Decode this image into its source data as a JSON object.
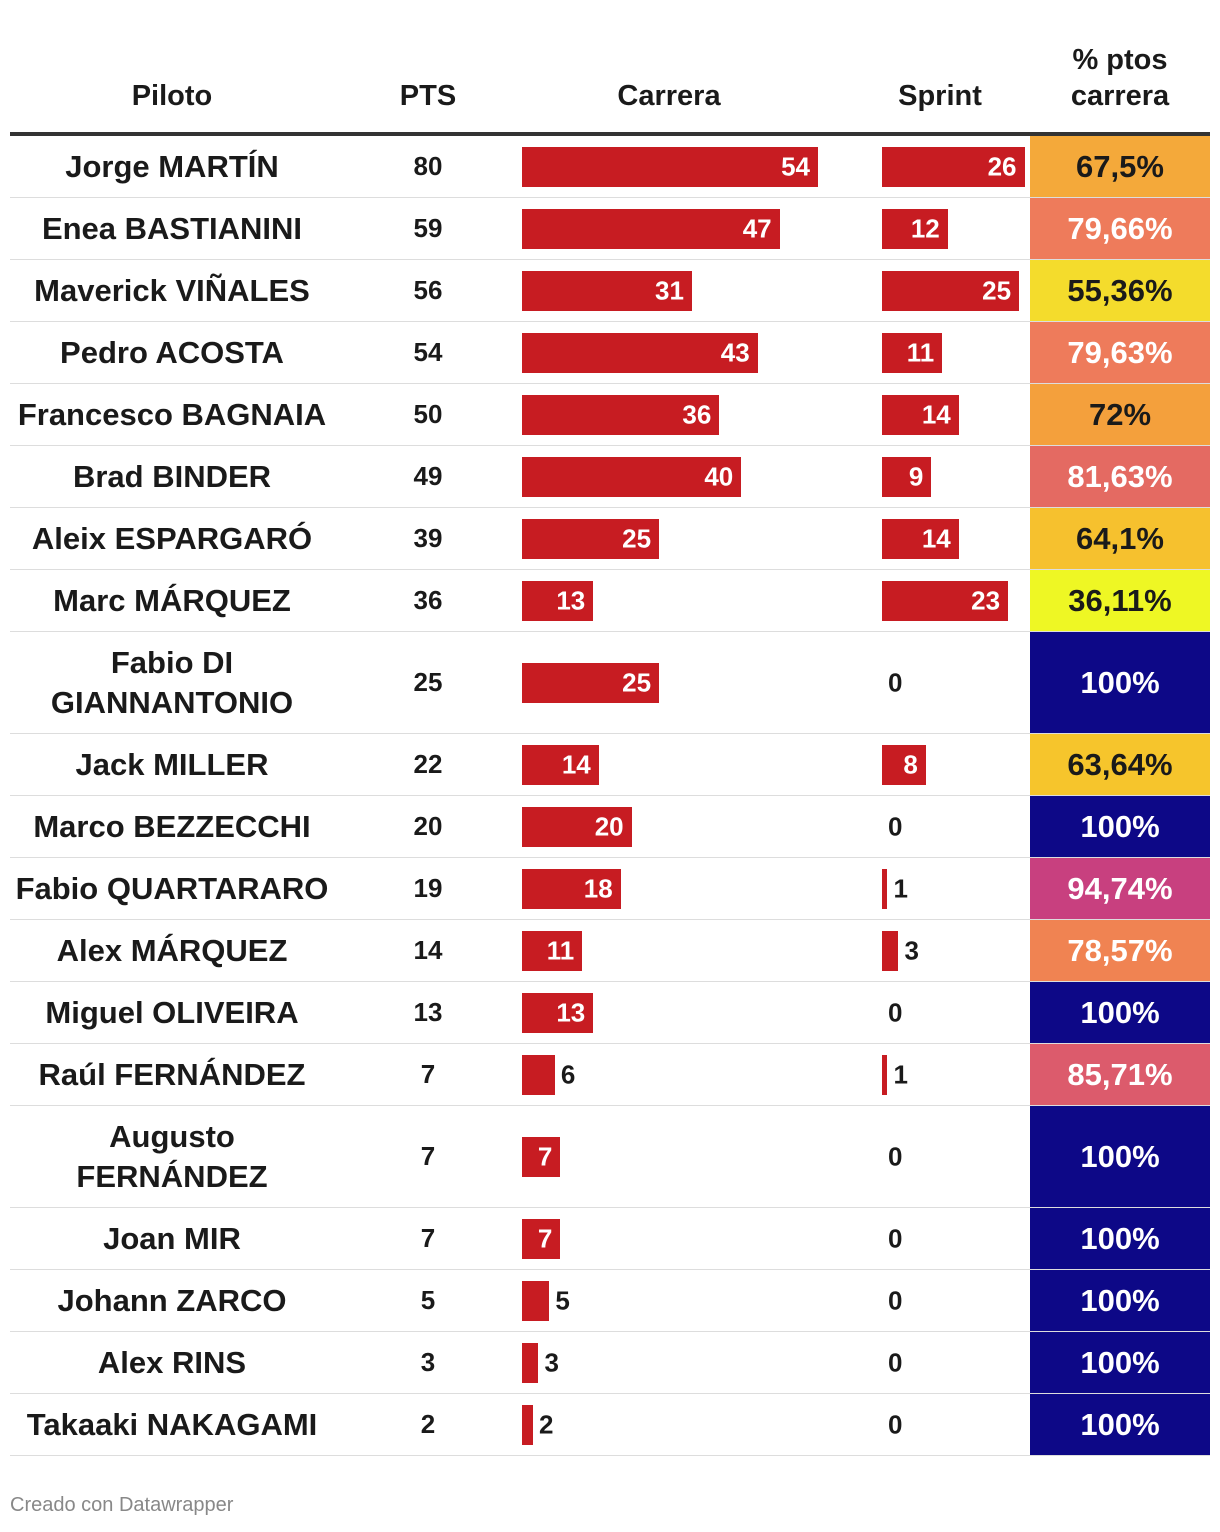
{
  "headers": {
    "piloto": "Piloto",
    "pts": "PTS",
    "carrera": "Carrera",
    "sprint": "Sprint",
    "pct_line1": "% ptos",
    "pct_line2": "carrera"
  },
  "footer": "Creado con Datawrapper",
  "colors": {
    "bar": "#c71c22",
    "text": "#1a1a1a",
    "header_rule": "#333333"
  },
  "chart_data": {
    "type": "table",
    "columns": [
      "Piloto",
      "PTS",
      "Carrera",
      "Sprint",
      "% ptos carrera"
    ],
    "scale_max": 54,
    "rows": [
      {
        "piloto": "Jorge MARTÍN",
        "pts": 80,
        "carrera": 54,
        "sprint": 26,
        "pct": "67,5%",
        "pct_color": "#f4a93a",
        "pct_text": "#1a1a1a"
      },
      {
        "piloto": "Enea BASTIANINI",
        "pts": 59,
        "carrera": 47,
        "sprint": 12,
        "pct": "79,66%",
        "pct_color": "#ee7b5b",
        "pct_text": "#ffffff"
      },
      {
        "piloto": "Maverick VIÑALES",
        "pts": 56,
        "carrera": 31,
        "sprint": 25,
        "pct": "55,36%",
        "pct_color": "#f4dc2c",
        "pct_text": "#1a1a1a"
      },
      {
        "piloto": "Pedro ACOSTA",
        "pts": 54,
        "carrera": 43,
        "sprint": 11,
        "pct": "79,63%",
        "pct_color": "#ee7b5b",
        "pct_text": "#ffffff"
      },
      {
        "piloto": "Francesco BAGNAIA",
        "pts": 50,
        "carrera": 36,
        "sprint": 14,
        "pct": "72%",
        "pct_color": "#f4a03c",
        "pct_text": "#1a1a1a"
      },
      {
        "piloto": "Brad BINDER",
        "pts": 49,
        "carrera": 40,
        "sprint": 9,
        "pct": "81,63%",
        "pct_color": "#e46a62",
        "pct_text": "#ffffff"
      },
      {
        "piloto": "Aleix ESPARGARÓ",
        "pts": 39,
        "carrera": 25,
        "sprint": 14,
        "pct": "64,1%",
        "pct_color": "#f6c12e",
        "pct_text": "#1a1a1a"
      },
      {
        "piloto": "Marc MÁRQUEZ",
        "pts": 36,
        "carrera": 13,
        "sprint": 23,
        "pct": "36,11%",
        "pct_color": "#eef724",
        "pct_text": "#1a1a1a"
      },
      {
        "piloto": "Fabio DI GIANNANTONIO",
        "pts": 25,
        "carrera": 25,
        "sprint": 0,
        "pct": "100%",
        "pct_color": "#0d0887",
        "pct_text": "#ffffff",
        "tall": true
      },
      {
        "piloto": "Jack MILLER",
        "pts": 22,
        "carrera": 14,
        "sprint": 8,
        "pct": "63,64%",
        "pct_color": "#f6c52c",
        "pct_text": "#1a1a1a"
      },
      {
        "piloto": "Marco BEZZECCHI",
        "pts": 20,
        "carrera": 20,
        "sprint": 0,
        "pct": "100%",
        "pct_color": "#0d0887",
        "pct_text": "#ffffff"
      },
      {
        "piloto": "Fabio QUARTARARO",
        "pts": 19,
        "carrera": 18,
        "sprint": 1,
        "pct": "94,74%",
        "pct_color": "#c8407f",
        "pct_text": "#ffffff"
      },
      {
        "piloto": "Alex MÁRQUEZ",
        "pts": 14,
        "carrera": 11,
        "sprint": 3,
        "pct": "78,57%",
        "pct_color": "#f08352",
        "pct_text": "#ffffff"
      },
      {
        "piloto": "Miguel OLIVEIRA",
        "pts": 13,
        "carrera": 13,
        "sprint": 0,
        "pct": "100%",
        "pct_color": "#0d0887",
        "pct_text": "#ffffff"
      },
      {
        "piloto": "Raúl FERNÁNDEZ",
        "pts": 7,
        "carrera": 6,
        "sprint": 1,
        "pct": "85,71%",
        "pct_color": "#dc5b6c",
        "pct_text": "#ffffff"
      },
      {
        "piloto": "Augusto FERNÁNDEZ",
        "pts": 7,
        "carrera": 7,
        "sprint": 0,
        "pct": "100%",
        "pct_color": "#0d0887",
        "pct_text": "#ffffff",
        "tall": true
      },
      {
        "piloto": "Joan MIR",
        "pts": 7,
        "carrera": 7,
        "sprint": 0,
        "pct": "100%",
        "pct_color": "#0d0887",
        "pct_text": "#ffffff"
      },
      {
        "piloto": "Johann ZARCO",
        "pts": 5,
        "carrera": 5,
        "sprint": 0,
        "pct": "100%",
        "pct_color": "#0d0887",
        "pct_text": "#ffffff"
      },
      {
        "piloto": "Alex RINS",
        "pts": 3,
        "carrera": 3,
        "sprint": 0,
        "pct": "100%",
        "pct_color": "#0d0887",
        "pct_text": "#ffffff"
      },
      {
        "piloto": "Takaaki NAKAGAMI",
        "pts": 2,
        "carrera": 2,
        "sprint": 0,
        "pct": "100%",
        "pct_color": "#0d0887",
        "pct_text": "#ffffff"
      }
    ]
  }
}
